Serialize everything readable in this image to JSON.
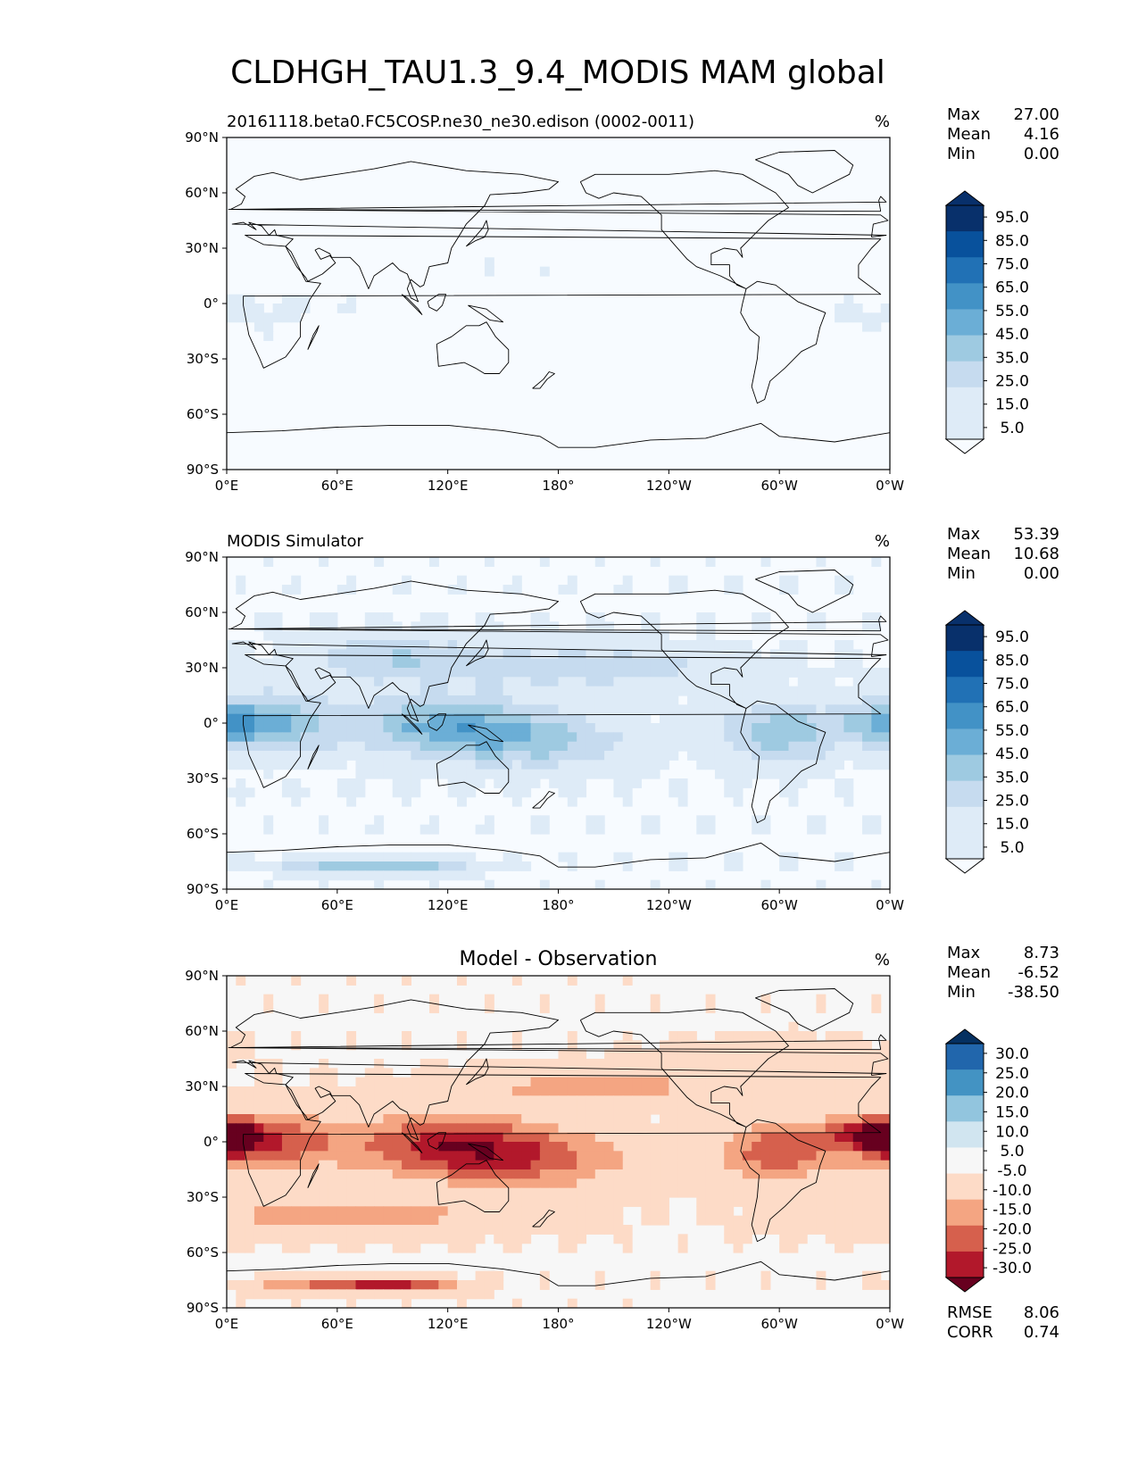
{
  "title": "CLDHGH_TAU1.3_9.4_MODIS MAM global",
  "colors": {
    "sequential": [
      "#f7fbff",
      "#deebf7",
      "#c6dbef",
      "#9ecae1",
      "#6baed6",
      "#4292c6",
      "#2171b5",
      "#08519c",
      "#08306b"
    ],
    "diverging": [
      "#67001f",
      "#b2182b",
      "#d6604d",
      "#f4a582",
      "#fddbc7",
      "#f7f7f7",
      "#d1e5f0",
      "#92c5de",
      "#4393c3",
      "#2166ac",
      "#053061"
    ],
    "coast": "#000000"
  },
  "chart_data": [
    {
      "type": "heatmap",
      "title": "20161118.beta0.FC5COSP.ne30_ne30.edison (0002-0011)",
      "units": "%",
      "stats": [
        {
          "label": "Max",
          "value": "27.00"
        },
        {
          "label": "Mean",
          "value": "4.16"
        },
        {
          "label": "Min",
          "value": "0.00"
        }
      ],
      "colorbar": {
        "ticks": [
          "95.0",
          "85.0",
          "75.0",
          "65.0",
          "55.0",
          "45.0",
          "35.0",
          "25.0",
          "15.0",
          "5.0"
        ],
        "levels": [
          0,
          5,
          15,
          25,
          35,
          45,
          55,
          65,
          75,
          85,
          95,
          100
        ]
      },
      "xticks": [
        "0°E",
        "60°E",
        "120°E",
        "180°",
        "120°W",
        "60°W",
        "0°W"
      ],
      "yticks": [
        "90°N",
        "60°N",
        "30°N",
        "0°",
        "30°S",
        "60°S",
        "90°S"
      ],
      "xlim": [
        0,
        360
      ],
      "ylim": [
        -90,
        90
      ]
    },
    {
      "type": "heatmap",
      "title": "MODIS Simulator",
      "units": "%",
      "stats": [
        {
          "label": "Max",
          "value": "53.39"
        },
        {
          "label": "Mean",
          "value": "10.68"
        },
        {
          "label": "Min",
          "value": "0.00"
        }
      ],
      "colorbar": {
        "ticks": [
          "95.0",
          "85.0",
          "75.0",
          "65.0",
          "55.0",
          "45.0",
          "35.0",
          "25.0",
          "15.0",
          "5.0"
        ],
        "levels": [
          0,
          5,
          15,
          25,
          35,
          45,
          55,
          65,
          75,
          85,
          95,
          100
        ]
      },
      "xticks": [
        "0°E",
        "60°E",
        "120°E",
        "180°",
        "120°W",
        "60°W",
        "0°W"
      ],
      "yticks": [
        "90°N",
        "60°N",
        "30°N",
        "0°",
        "30°S",
        "60°S",
        "90°S"
      ],
      "xlim": [
        0,
        360
      ],
      "ylim": [
        -90,
        90
      ]
    },
    {
      "type": "heatmap",
      "title": "Model - Observation",
      "units": "%",
      "stats": [
        {
          "label": "Max",
          "value": "8.73"
        },
        {
          "label": "Mean",
          "value": "-6.52"
        },
        {
          "label": "Min",
          "value": "-38.50"
        }
      ],
      "extra_stats": [
        {
          "label": "RMSE",
          "value": "8.06"
        },
        {
          "label": "CORR",
          "value": "0.74"
        }
      ],
      "colorbar": {
        "ticks": [
          "30.0",
          "25.0",
          "20.0",
          "15.0",
          "10.0",
          "5.0",
          "-5.0",
          "-10.0",
          "-15.0",
          "-20.0",
          "-25.0",
          "-30.0"
        ],
        "levels": [
          -35,
          -30,
          -25,
          -20,
          -15,
          -10,
          -5,
          5,
          10,
          15,
          20,
          25,
          30,
          35
        ]
      },
      "xticks": [
        "0°E",
        "60°E",
        "120°E",
        "180°",
        "120°W",
        "60°W",
        "0°W"
      ],
      "yticks": [
        "90°N",
        "60°N",
        "30°N",
        "0°",
        "30°S",
        "60°S",
        "90°S"
      ],
      "xlim": [
        0,
        360
      ],
      "ylim": [
        -90,
        90
      ]
    }
  ]
}
